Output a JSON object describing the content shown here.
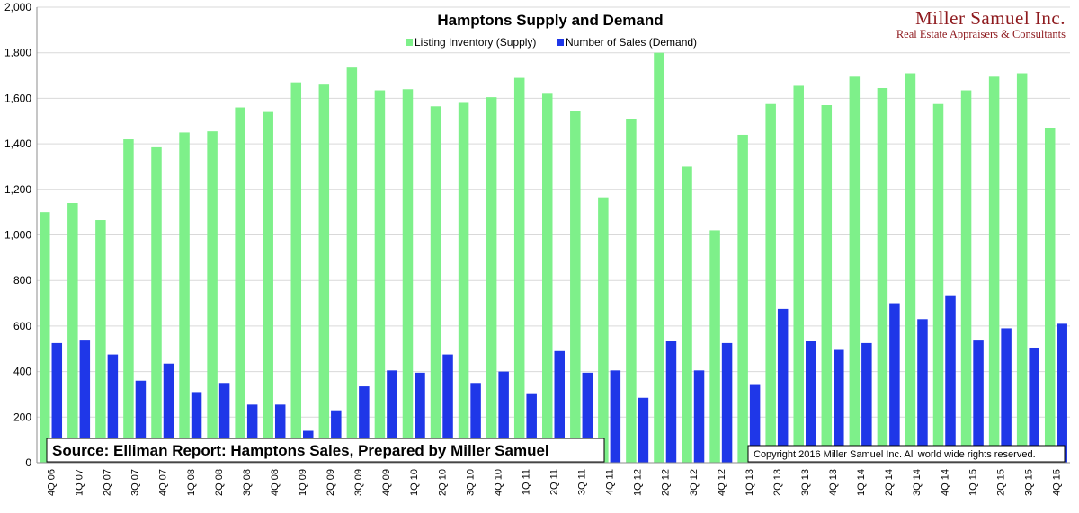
{
  "chart_data": {
    "type": "bar",
    "title": "Hamptons Supply and Demand",
    "ylim": [
      0,
      2000
    ],
    "y_ticks": [
      "0",
      "200",
      "400",
      "600",
      "800",
      "1,000",
      "1,200",
      "1,400",
      "1,600",
      "1,800",
      "2,000"
    ],
    "grid": true,
    "legend_position": "top-center",
    "categories": [
      "4Q 06",
      "1Q 07",
      "2Q 07",
      "3Q 07",
      "4Q 07",
      "1Q 08",
      "2Q 08",
      "3Q 08",
      "4Q 08",
      "1Q 09",
      "2Q 09",
      "3Q 09",
      "4Q 09",
      "1Q 10",
      "2Q 10",
      "3Q 10",
      "4Q 10",
      "1Q 11",
      "2Q 11",
      "3Q 11",
      "4Q 11",
      "1Q 12",
      "2Q 12",
      "3Q 12",
      "4Q 12",
      "1Q 13",
      "2Q 13",
      "3Q 13",
      "4Q 13",
      "1Q 14",
      "2Q 14",
      "3Q 14",
      "4Q 14",
      "1Q 15",
      "2Q 15",
      "3Q 15",
      "4Q 15"
    ],
    "series": [
      {
        "name": "Listing Inventory (Supply)",
        "color": "#7ef08a",
        "values": [
          1100,
          1140,
          1065,
          1420,
          1385,
          1450,
          1455,
          1560,
          1540,
          1670,
          1660,
          1735,
          1635,
          1640,
          1565,
          1580,
          1605,
          1690,
          1620,
          1545,
          1165,
          1510,
          1800,
          1300,
          1020,
          1440,
          1575,
          1655,
          1570,
          1695,
          1645,
          1710,
          1575,
          1635,
          1695,
          1710,
          1470
        ]
      },
      {
        "name": "Number of Sales (Demand)",
        "color": "#1f37e8",
        "values": [
          525,
          540,
          475,
          360,
          435,
          310,
          350,
          255,
          255,
          140,
          230,
          335,
          405,
          395,
          475,
          350,
          400,
          305,
          490,
          395,
          405,
          285,
          535,
          405,
          525,
          345,
          675,
          535,
          495,
          525,
          700,
          630,
          735,
          540,
          590,
          505,
          610
        ]
      }
    ],
    "annotations": {
      "source": "Source:  Elliman Report: Hamptons Sales, Prepared by Miller Samuel",
      "copyright": "Copyright 2016 Miller Samuel Inc.  All world wide rights reserved."
    }
  },
  "logo": {
    "name": "Miller Samuel Inc.",
    "tagline": "Real Estate Appraisers & Consultants"
  }
}
